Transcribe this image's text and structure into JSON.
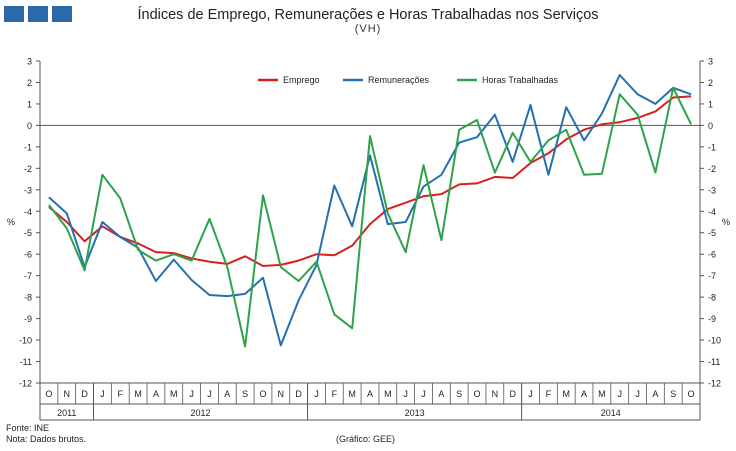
{
  "header": {
    "title": "Índices de Emprego,  Remunerações  e Horas Trabalhadas  nos Serviços",
    "subtitle": "(VH)"
  },
  "footer": {
    "source": "Fonte: INE",
    "note": "Nota: Dados  brutos.",
    "credit": "(Gráfico:  GEE)"
  },
  "colors": {
    "emprego": "#d62020",
    "remuneracoes": "#2470b0",
    "horas": "#2ea24a",
    "brand": "#2a6aa8"
  },
  "chart_data": {
    "type": "line",
    "title": "Índices de Emprego,  Remunerações  e Horas Trabalhadas  nos Serviços",
    "subtitle": "(VH)",
    "ylabel": "%",
    "ylabel_right": "%",
    "ylim": [
      -12,
      3
    ],
    "yticks": [
      3,
      2,
      1,
      0,
      -1,
      -2,
      -3,
      -4,
      -5,
      -6,
      -7,
      -8,
      -9,
      -10,
      -11,
      -12
    ],
    "grid": false,
    "legend": "top-center",
    "categories": [
      "O",
      "N",
      "D",
      "J",
      "F",
      "M",
      "A",
      "M",
      "J",
      "J",
      "A",
      "S",
      "O",
      "N",
      "D",
      "J",
      "F",
      "M",
      "A",
      "M",
      "J",
      "J",
      "A",
      "S",
      "O",
      "N",
      "D",
      "J",
      "F",
      "M",
      "A",
      "M",
      "J",
      "J",
      "A",
      "S",
      "O"
    ],
    "years": [
      {
        "label": "2011",
        "start": 0,
        "end": 3
      },
      {
        "label": "2012",
        "start": 3,
        "end": 15
      },
      {
        "label": "2013",
        "start": 15,
        "end": 27
      },
      {
        "label": "2014",
        "start": 27,
        "end": 37
      }
    ],
    "series": [
      {
        "name": "Emprego",
        "color": "#d62020",
        "values": [
          -3.8,
          -4.5,
          -5.4,
          -4.7,
          -5.2,
          -5.5,
          -5.9,
          -5.95,
          -6.2,
          -6.35,
          -6.45,
          -6.1,
          -6.55,
          -6.5,
          -6.3,
          -6.0,
          -6.05,
          -5.6,
          -4.6,
          -3.9,
          -3.6,
          -3.3,
          -3.2,
          -2.75,
          -2.7,
          -2.4,
          -2.45,
          -1.75,
          -1.3,
          -0.65,
          -0.2,
          0.05,
          0.15,
          0.35,
          0.65,
          1.3,
          1.35
        ]
      },
      {
        "name": "Remunerações",
        "color": "#2470b0",
        "values": [
          -3.35,
          -4.1,
          -6.6,
          -4.5,
          -5.2,
          -5.7,
          -7.25,
          -6.25,
          -7.2,
          -7.9,
          -7.95,
          -7.85,
          -7.1,
          -10.25,
          -8.15,
          -6.5,
          -2.8,
          -4.7,
          -1.4,
          -4.6,
          -4.5,
          -2.85,
          -2.3,
          -0.8,
          -0.55,
          0.5,
          -1.7,
          0.95,
          -2.3,
          0.85,
          -0.7,
          0.55,
          2.35,
          1.45,
          1.0,
          1.75,
          1.45
        ]
      },
      {
        "name": "Horas Trabalhadas",
        "color": "#2ea24a",
        "values": [
          -3.7,
          -4.8,
          -6.75,
          -2.3,
          -3.4,
          -5.8,
          -6.3,
          -6.0,
          -6.3,
          -4.35,
          -6.6,
          -10.3,
          -3.25,
          -6.6,
          -7.25,
          -6.35,
          -8.8,
          -9.45,
          -0.5,
          -4.1,
          -5.9,
          -1.85,
          -5.35,
          -0.2,
          0.25,
          -2.2,
          -0.35,
          -1.7,
          -0.7,
          -0.2,
          -2.3,
          -2.25,
          1.45,
          0.5,
          -2.2,
          1.75,
          0.05
        ]
      }
    ]
  }
}
